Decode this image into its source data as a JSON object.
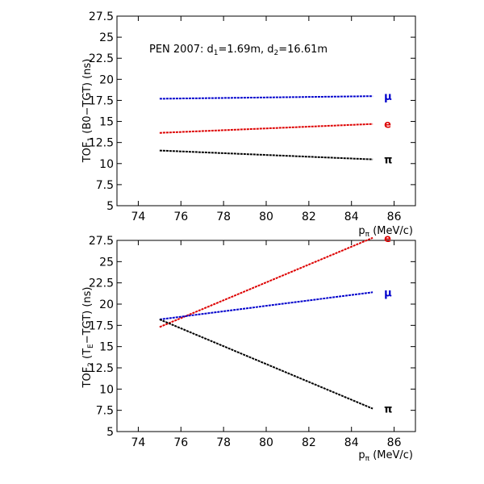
{
  "chart_data": [
    {
      "type": "line",
      "title": "",
      "annotation": "PEN 2007: d1=1.69m, d2=16.61m",
      "xlabel": "pπ (MeV/c)",
      "ylabel": "TOF1 (B0−TGT) (ns)",
      "xlim": [
        73,
        87
      ],
      "ylim": [
        5,
        27.5
      ],
      "xticks": [
        74,
        76,
        78,
        80,
        82,
        84,
        86
      ],
      "yticks": [
        5,
        7.5,
        10,
        12.5,
        15,
        17.5,
        20,
        22.5,
        25,
        27.5
      ],
      "grid": false,
      "series": [
        {
          "name": "μ",
          "color": "#0000cc",
          "x": [
            75,
            85
          ],
          "y": [
            17.7,
            18.0
          ]
        },
        {
          "name": "e",
          "color": "#dd0000",
          "x": [
            75,
            85
          ],
          "y": [
            13.65,
            14.7
          ]
        },
        {
          "name": "π",
          "color": "#000000",
          "x": [
            75,
            85
          ],
          "y": [
            11.55,
            10.5
          ]
        }
      ]
    },
    {
      "type": "line",
      "title": "",
      "xlabel": "pπ (MeV/c)",
      "ylabel": "TOF2 (TE−TGT) (ns)",
      "xlim": [
        73,
        87
      ],
      "ylim": [
        5,
        27.5
      ],
      "xticks": [
        74,
        76,
        78,
        80,
        82,
        84,
        86
      ],
      "yticks": [
        5,
        7.5,
        10,
        12.5,
        15,
        17.5,
        20,
        22.5,
        25,
        27.5
      ],
      "grid": false,
      "series": [
        {
          "name": "e",
          "color": "#dd0000",
          "x": [
            75,
            85
          ],
          "y": [
            17.3,
            27.8
          ]
        },
        {
          "name": "μ",
          "color": "#0000cc",
          "x": [
            75,
            85
          ],
          "y": [
            18.2,
            21.4
          ]
        },
        {
          "name": "π",
          "color": "#000000",
          "x": [
            75,
            85
          ],
          "y": [
            18.2,
            7.7
          ]
        }
      ]
    }
  ]
}
